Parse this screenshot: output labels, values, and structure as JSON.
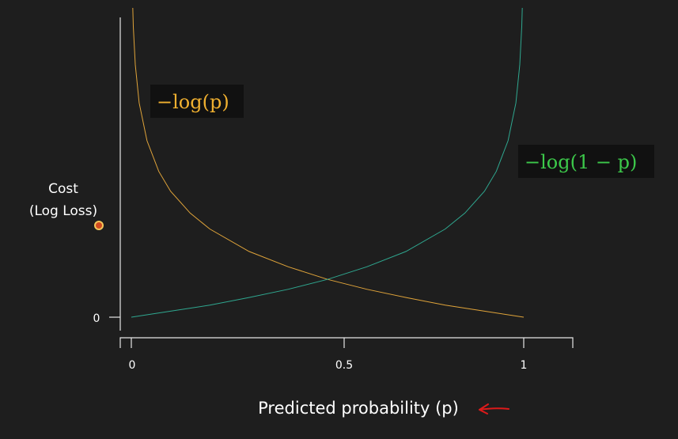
{
  "chart_data": {
    "type": "line",
    "title": "",
    "xlabel": "Predicted probability (p)",
    "ylabel_lines": [
      "Cost",
      "(Log Loss)"
    ],
    "x_ticks": [
      "0",
      "0.5",
      "1"
    ],
    "x_tick_values": [
      0,
      0.5,
      1
    ],
    "y_ticks": [
      "0"
    ],
    "y_tick_values": [
      0
    ],
    "xlim": [
      0,
      1
    ],
    "ylim": [
      0,
      5.5
    ],
    "grid": false,
    "series": [
      {
        "name": "−log(p)",
        "color": "#e0a43a",
        "label_color": "#f0b030",
        "x": [
          0.003,
          0.005,
          0.01,
          0.02,
          0.04,
          0.07,
          0.1,
          0.15,
          0.2,
          0.3,
          0.4,
          0.5,
          0.6,
          0.7,
          0.8,
          0.9,
          1.0
        ],
        "y": [
          5.81,
          5.3,
          4.61,
          3.91,
          3.22,
          2.66,
          2.3,
          1.9,
          1.61,
          1.2,
          0.92,
          0.69,
          0.51,
          0.36,
          0.22,
          0.11,
          0.0
        ]
      },
      {
        "name": "−log(1 − p)",
        "color": "#2fa890",
        "label_color": "#3cc84a",
        "x": [
          0.0,
          0.1,
          0.2,
          0.3,
          0.4,
          0.5,
          0.6,
          0.7,
          0.8,
          0.85,
          0.9,
          0.93,
          0.96,
          0.98,
          0.99,
          0.995,
          0.997
        ],
        "y": [
          0.0,
          0.11,
          0.22,
          0.36,
          0.51,
          0.69,
          0.92,
          1.2,
          1.61,
          1.9,
          2.3,
          2.66,
          3.22,
          3.91,
          4.61,
          5.3,
          5.81
        ]
      }
    ],
    "annotation_arrow_color": "#dd1a1a"
  }
}
